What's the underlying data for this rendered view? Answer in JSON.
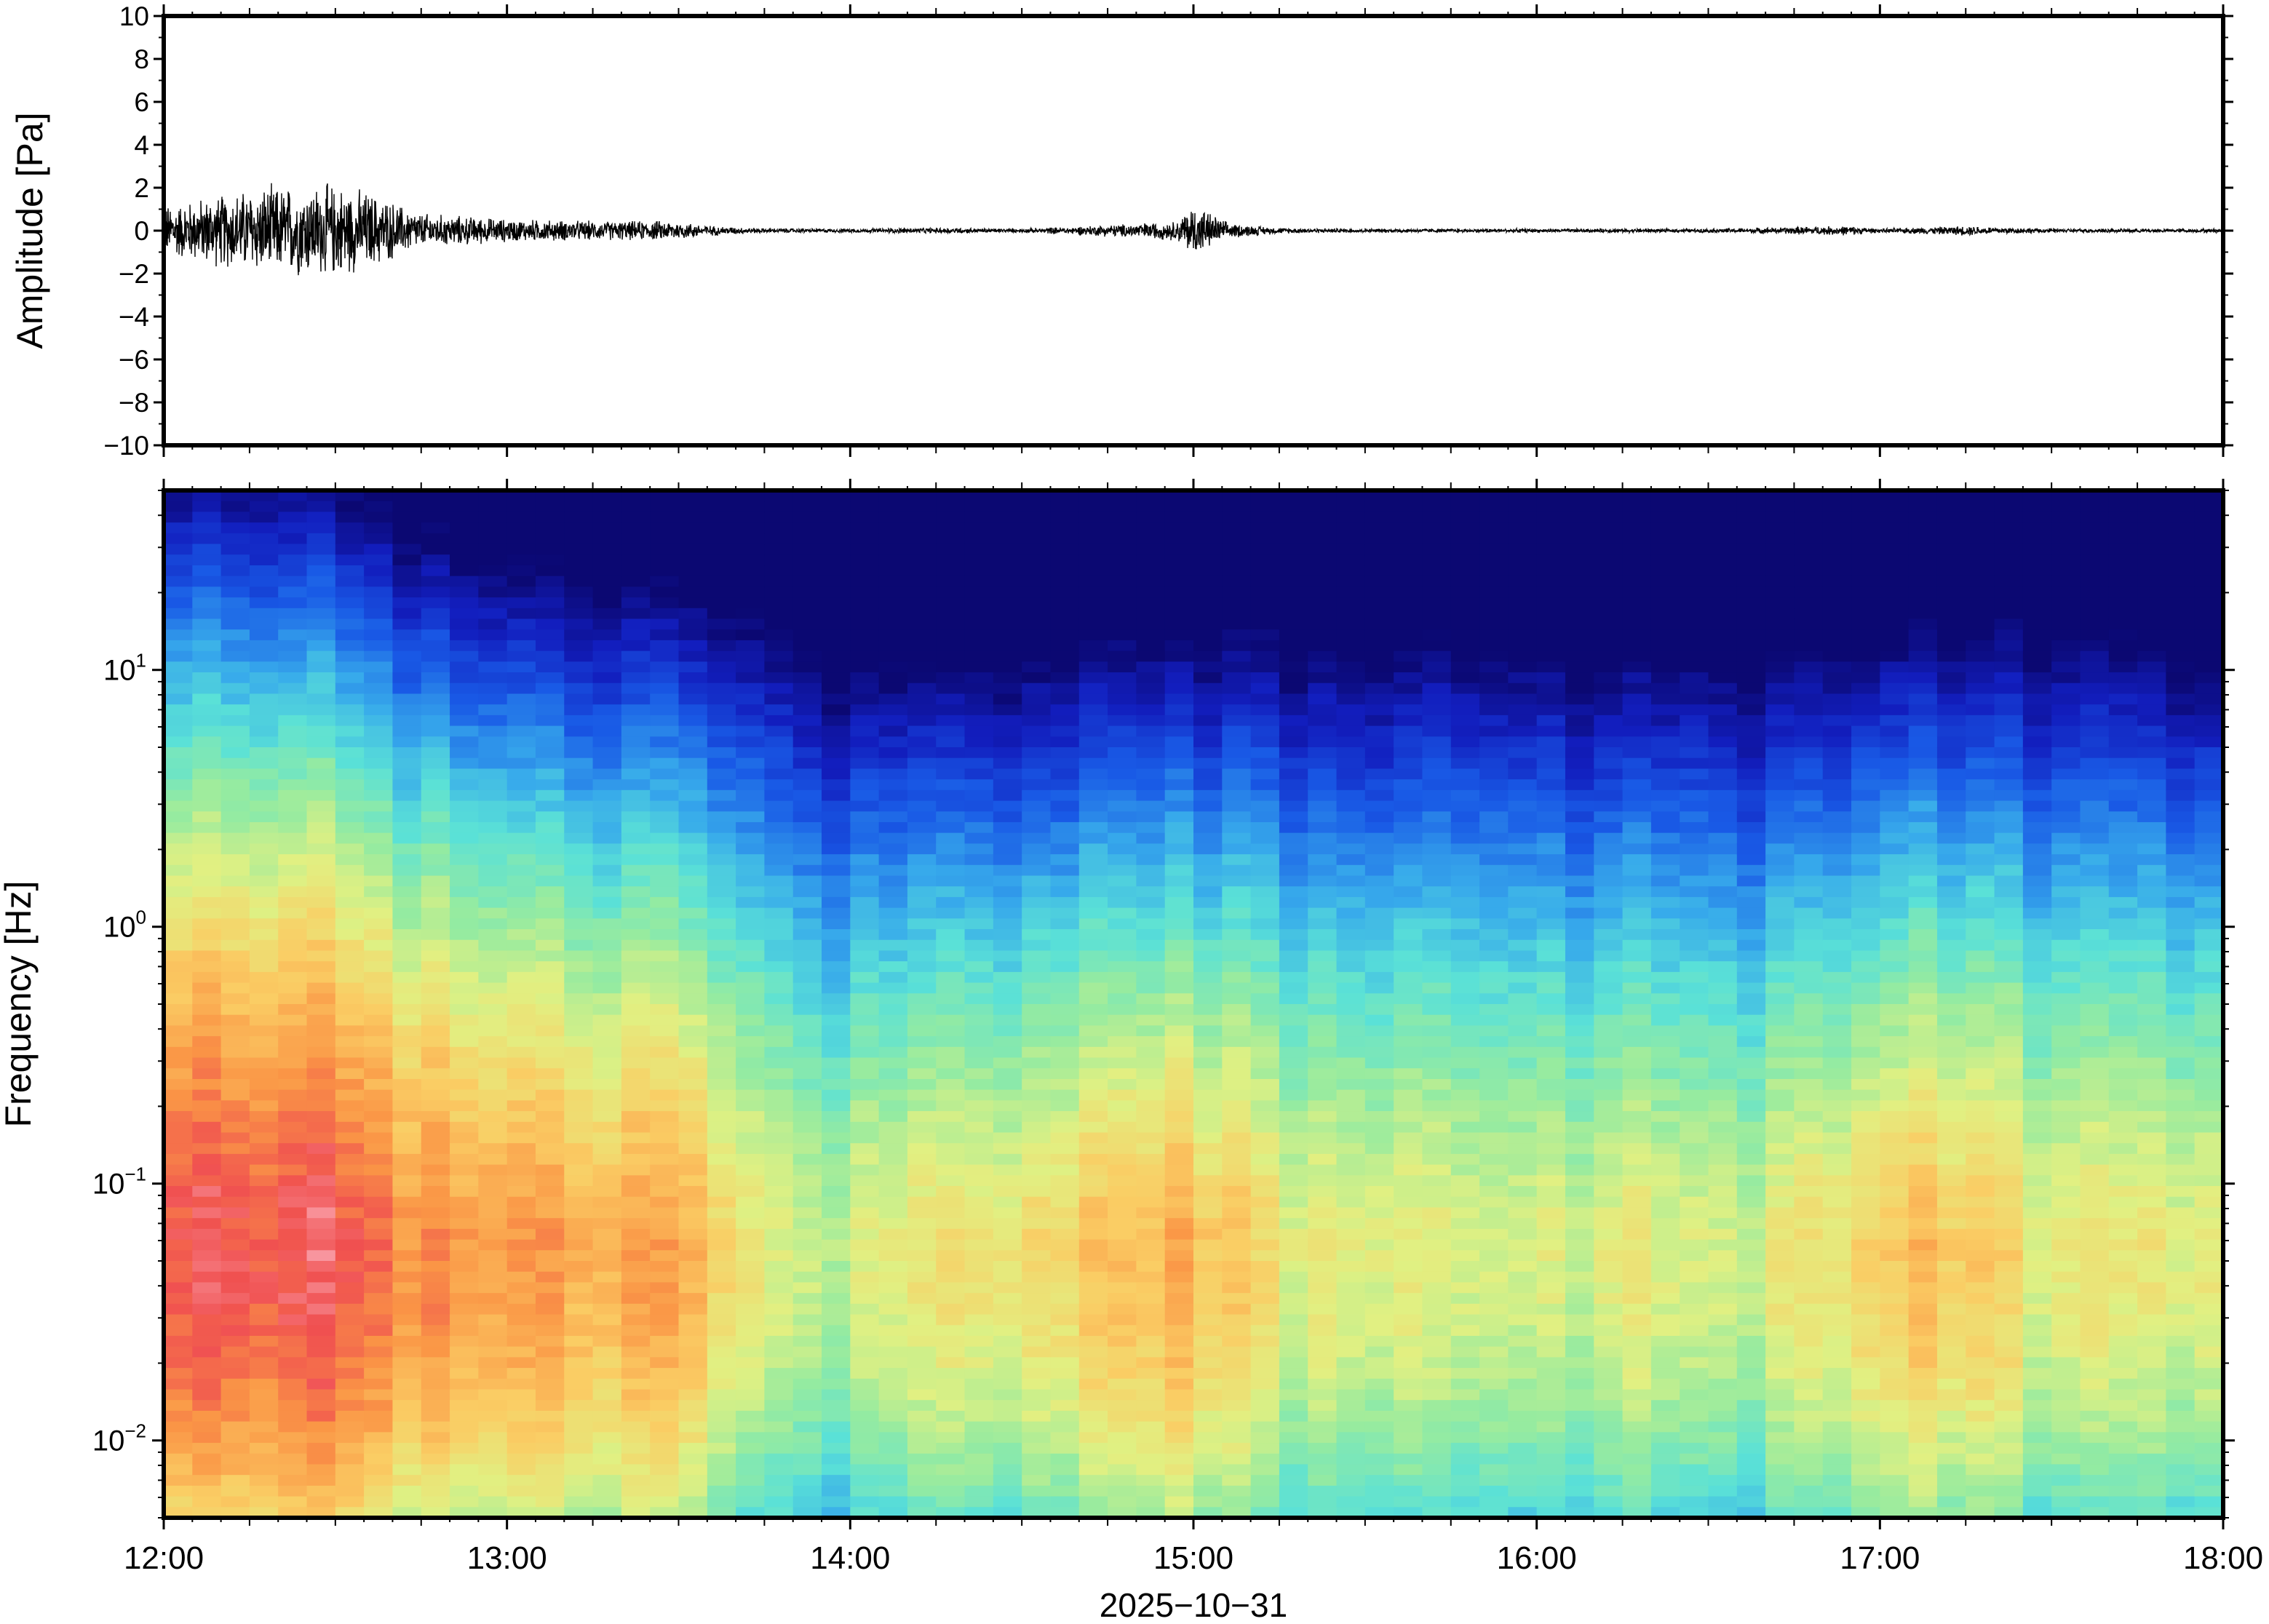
{
  "chart_data": [
    {
      "type": "line",
      "ylabel": "Amplitude [Pa]",
      "ylim": [
        -10,
        10
      ],
      "yticks": [
        10,
        8,
        6,
        4,
        2,
        0,
        -2,
        -4,
        -6,
        -8,
        -10
      ],
      "ytick_labels": [
        "10",
        "8",
        "6",
        "4",
        "2",
        "0",
        "−2",
        "−4",
        "−6",
        "−8",
        "−10"
      ],
      "xlim_hours": [
        12,
        18
      ],
      "envelope": {
        "time_hours": [
          12.0,
          12.2,
          12.3,
          12.5,
          12.6,
          12.75,
          13.0,
          13.25,
          13.5,
          13.6,
          13.75,
          14.0,
          14.25,
          14.5,
          14.75,
          14.95,
          15.0,
          15.1,
          15.25,
          15.5,
          16.0,
          16.5,
          16.9,
          17.0,
          17.25,
          17.5,
          18.0
        ],
        "amplitude_pa": [
          1.3,
          2.0,
          2.3,
          2.4,
          2.0,
          0.9,
          0.6,
          0.5,
          0.5,
          0.25,
          0.12,
          0.1,
          0.15,
          0.1,
          0.3,
          0.5,
          1.4,
          0.4,
          0.15,
          0.1,
          0.1,
          0.1,
          0.25,
          0.1,
          0.25,
          0.1,
          0.1
        ]
      }
    },
    {
      "type": "heatmap",
      "ylabel": "Frequency [Hz]",
      "xlabel": "2025−10−31",
      "y_scale": "log",
      "ylim_hz": [
        0.005,
        50
      ],
      "yticks": [
        {
          "base": "10",
          "exp": "1",
          "value": 10
        },
        {
          "base": "10",
          "exp": "0",
          "value": 1
        },
        {
          "base": "10",
          "exp": "−1",
          "value": 0.1
        },
        {
          "base": "10",
          "exp": "−2",
          "value": 0.01
        }
      ],
      "xticks": [
        {
          "label": "12:00",
          "hour": 12
        },
        {
          "label": "13:00",
          "hour": 13
        },
        {
          "label": "14:00",
          "hour": 14
        },
        {
          "label": "15:00",
          "hour": 15
        },
        {
          "label": "16:00",
          "hour": 16
        },
        {
          "label": "17:00",
          "hour": 17
        },
        {
          "label": "18:00",
          "hour": 18
        }
      ],
      "colormap": "jet-like (dark blue low power → red/pink high power)",
      "power_profile": {
        "time_hours": [
          12.0,
          12.25,
          12.5,
          12.75,
          13.0,
          13.25,
          13.5,
          13.75,
          14.0,
          14.25,
          14.5,
          14.75,
          15.0,
          15.25,
          15.5,
          15.75,
          16.0,
          16.25,
          16.5,
          16.75,
          17.0,
          17.25,
          17.5,
          17.75,
          18.0
        ],
        "high_freq_level": [
          0.55,
          0.6,
          0.55,
          0.45,
          0.38,
          0.35,
          0.32,
          0.3,
          0.18,
          0.2,
          0.2,
          0.22,
          0.23,
          0.24,
          0.24,
          0.23,
          0.2,
          0.22,
          0.19,
          0.2,
          0.25,
          0.27,
          0.25,
          0.24,
          0.22
        ],
        "low_freq_level": [
          0.9,
          0.95,
          0.93,
          0.85,
          0.82,
          0.8,
          0.8,
          0.65,
          0.6,
          0.68,
          0.7,
          0.74,
          0.8,
          0.66,
          0.68,
          0.62,
          0.6,
          0.66,
          0.6,
          0.66,
          0.74,
          0.76,
          0.66,
          0.66,
          0.68
        ]
      }
    }
  ]
}
